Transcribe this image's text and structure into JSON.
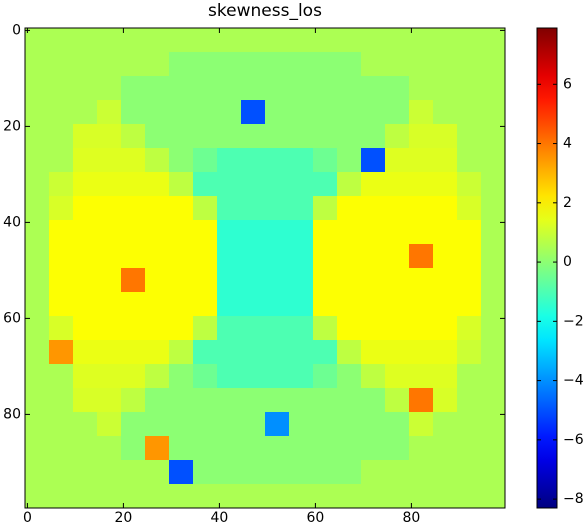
{
  "chart_data": {
    "type": "heatmap",
    "title": "skewness_los",
    "colormap": "jet",
    "xlim": [
      -0.5,
      99.5
    ],
    "ylim": [
      99.5,
      -0.5
    ],
    "xticks": [
      0,
      20,
      40,
      60,
      80
    ],
    "yticks": [
      0,
      20,
      40,
      60,
      80
    ],
    "clim": [
      -8.3,
      7.9
    ],
    "cticks": [
      {
        "value": -8,
        "label": "−8"
      },
      {
        "value": -6,
        "label": "−6"
      },
      {
        "value": -4,
        "label": "−4"
      },
      {
        "value": -2,
        "label": "−2"
      },
      0,
      2,
      4,
      6
    ],
    "z": [
      [
        0.5,
        0.5,
        0.5,
        0.5,
        0.5,
        0.5,
        0.5,
        0.5,
        0.5,
        0.5,
        0.5,
        0.5,
        0.5,
        0.5,
        0.5,
        0.5,
        0.5,
        0.5,
        0.5,
        0.5
      ],
      [
        0.5,
        0.5,
        0.5,
        0.5,
        0.5,
        0.5,
        0,
        0,
        0,
        0,
        0,
        0,
        0,
        0,
        0.5,
        0.5,
        0.5,
        0.5,
        0.5,
        0.5
      ],
      [
        0.5,
        0.5,
        0.5,
        0.5,
        0,
        0,
        0,
        0,
        0,
        0,
        0,
        0,
        0,
        0,
        0,
        0,
        0.5,
        0.5,
        0.5,
        0.5
      ],
      [
        0.5,
        0.5,
        0.5,
        1,
        0,
        0,
        0,
        0,
        0,
        -5,
        0,
        0,
        0,
        0,
        0,
        0,
        1,
        0.5,
        0.5,
        0.5
      ],
      [
        0.5,
        0.5,
        1.2,
        1.2,
        0.8,
        0,
        0,
        0,
        0,
        0,
        0,
        0,
        0,
        0,
        0,
        0.8,
        1.2,
        1.2,
        0.5,
        0.5
      ],
      [
        0.5,
        0.5,
        1.3,
        1.3,
        1.3,
        0.8,
        0,
        -0.5,
        -1,
        -1,
        -1,
        -1,
        -0.5,
        0,
        -5,
        1.3,
        1.3,
        1.3,
        0.5,
        0.5
      ],
      [
        0.5,
        1,
        1.5,
        1.5,
        1.5,
        1.5,
        0.8,
        -1,
        -1,
        -1,
        -1,
        -1,
        -1,
        0.8,
        1.5,
        1.5,
        1.5,
        1.5,
        1,
        0.5
      ],
      [
        0.5,
        1.2,
        1.8,
        1.8,
        1.8,
        1.8,
        1.8,
        0.8,
        -1,
        -1,
        -1,
        -1,
        0.8,
        1.8,
        1.8,
        1.8,
        1.8,
        1.8,
        1.2,
        0.5
      ],
      [
        0.5,
        1.8,
        1.8,
        1.8,
        1.8,
        1.8,
        1.8,
        1.8,
        -1.5,
        -1.5,
        -1.5,
        -1.5,
        1.8,
        1.8,
        1.8,
        1.8,
        1.8,
        1.8,
        1.8,
        0.5
      ],
      [
        0.5,
        1.8,
        1.8,
        1.8,
        1.8,
        1.8,
        1.8,
        1.8,
        -1.5,
        -1.5,
        -1.5,
        -1.5,
        1.8,
        1.8,
        1.8,
        1.8,
        4,
        1.8,
        1.8,
        0.5
      ],
      [
        0.5,
        1.8,
        1.8,
        1.8,
        4,
        1.8,
        1.8,
        1.8,
        -1.5,
        -1.5,
        -1.5,
        -1.5,
        1.8,
        1.8,
        1.8,
        1.8,
        1.8,
        1.8,
        1.8,
        0.5
      ],
      [
        0.5,
        1.8,
        1.8,
        1.8,
        1.8,
        1.8,
        1.8,
        1.8,
        -1.5,
        -1.5,
        -1.5,
        -1.5,
        1.8,
        1.8,
        1.8,
        1.8,
        1.8,
        1.8,
        1.8,
        0.5
      ],
      [
        0.5,
        1.2,
        1.8,
        1.8,
        1.8,
        1.8,
        1.8,
        0.8,
        -1,
        -1,
        -1,
        -1,
        0.8,
        1.8,
        1.8,
        1.8,
        1.8,
        1.8,
        1.2,
        0.5
      ],
      [
        0.5,
        3.5,
        1.5,
        1.5,
        1.5,
        1.5,
        0.8,
        -1,
        -1,
        -1,
        -1,
        -1,
        -1,
        0.8,
        1.5,
        1.5,
        1.5,
        1.5,
        1,
        0.5
      ],
      [
        0.5,
        0.5,
        1.3,
        1.3,
        1.3,
        0.8,
        0,
        -0.5,
        -1,
        -1,
        -1,
        -1,
        -0.5,
        0,
        0.8,
        1.3,
        1.3,
        1.3,
        0.5,
        0.5
      ],
      [
        0.5,
        0.5,
        1.2,
        1.2,
        0.8,
        0,
        0,
        0,
        0,
        0,
        0,
        0,
        0,
        0,
        0,
        0.8,
        4,
        1.2,
        0.5,
        0.5
      ],
      [
        0.5,
        0.5,
        0.5,
        1,
        0,
        0,
        0,
        0,
        0,
        0,
        -4,
        0,
        0,
        0,
        0,
        0,
        1,
        0.5,
        0.5,
        0.5
      ],
      [
        0.5,
        0.5,
        0.5,
        0.5,
        0,
        3.5,
        0,
        0,
        0,
        0,
        0,
        0,
        0,
        0,
        0,
        0,
        0.5,
        0.5,
        0.5,
        0.5
      ],
      [
        0.5,
        0.5,
        0.5,
        0.5,
        0.5,
        0.5,
        -5,
        0,
        0,
        0,
        0,
        0,
        0,
        0,
        0.5,
        0.5,
        0.5,
        0.5,
        0.5,
        0.5
      ],
      [
        0.5,
        0.5,
        0.5,
        0.5,
        0.5,
        0.5,
        0.5,
        0.5,
        0.5,
        0.5,
        0.5,
        0.5,
        0.5,
        0.5,
        0.5,
        0.5,
        0.5,
        0.5,
        0.5,
        0.5
      ]
    ]
  }
}
